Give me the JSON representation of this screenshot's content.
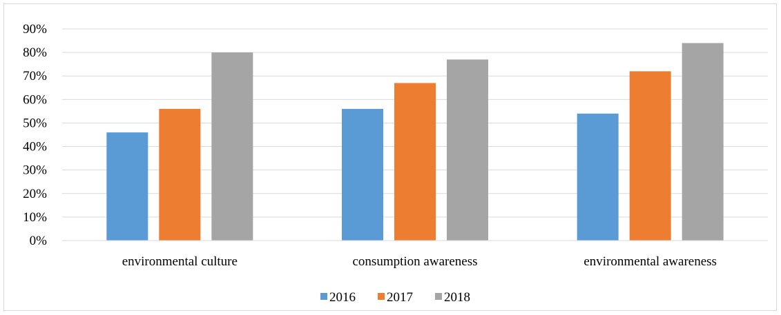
{
  "chart_data": {
    "type": "bar",
    "categories": [
      "environmental culture",
      "consumption awareness",
      "environmental awareness"
    ],
    "series": [
      {
        "name": "2016",
        "color": "#5b9bd5",
        "values": [
          46,
          56,
          54
        ]
      },
      {
        "name": "2017",
        "color": "#ed7d31",
        "values": [
          56,
          67,
          72
        ]
      },
      {
        "name": "2018",
        "color": "#a5a5a5",
        "values": [
          80,
          77,
          84
        ]
      }
    ],
    "yticks": [
      "0%",
      "10%",
      "20%",
      "30%",
      "40%",
      "50%",
      "60%",
      "70%",
      "80%",
      "90%"
    ],
    "ylim": [
      0,
      90
    ],
    "grid": true,
    "legend_position": "bottom"
  }
}
